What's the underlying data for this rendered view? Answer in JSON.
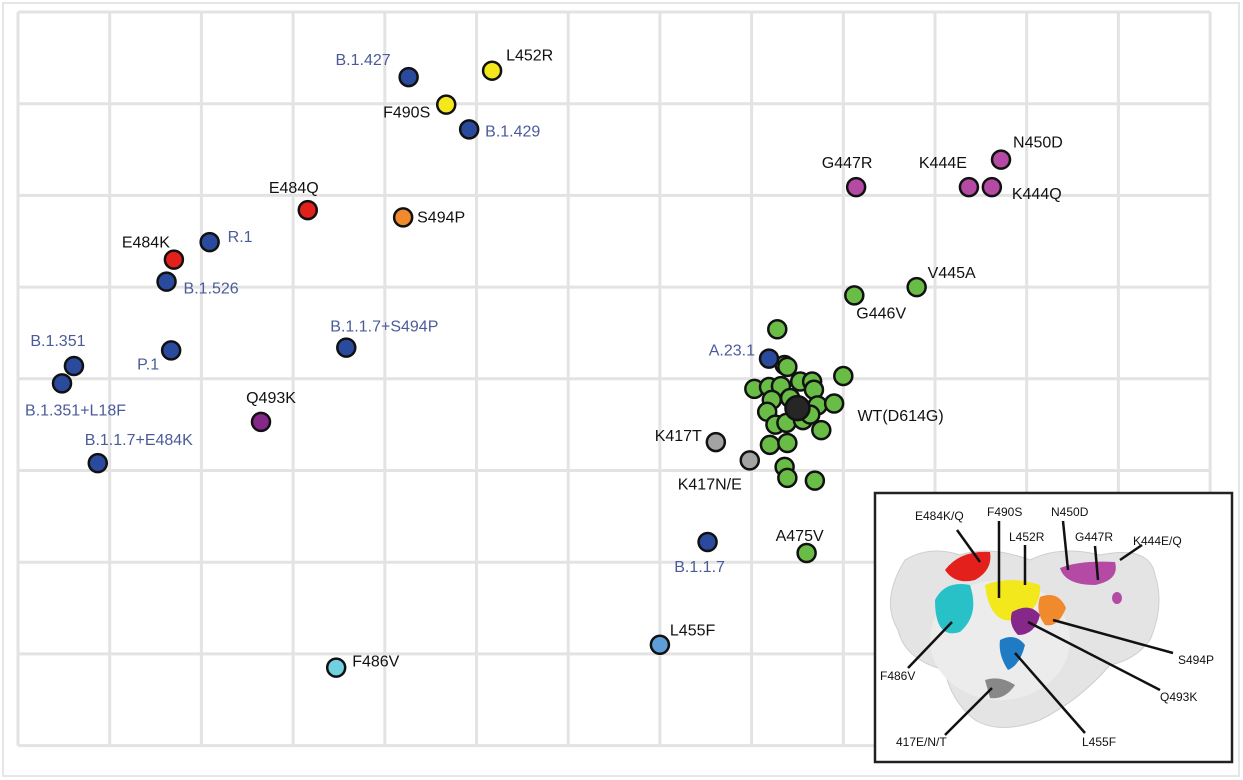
{
  "chart_data": {
    "type": "scatter",
    "title": "",
    "xlabel": "",
    "ylabel": "",
    "grid": true,
    "xlim": [
      0,
      13
    ],
    "ylim": [
      0,
      8
    ],
    "y_direction": "down",
    "colors": {
      "variant": "#2a4a9e",
      "variant_label": "#4b5b99",
      "mutant_label": "#111111",
      "yellow": "#f2e81c",
      "red": "#e3201b",
      "orange": "#f08a2c",
      "magenta": "#b54aa5",
      "purple": "#86278a",
      "green": "#69bd47",
      "gray": "#a3a3a3",
      "cyan": "#72d1e0",
      "lightblue": "#5d9ed8",
      "wt": "#262626"
    },
    "points": [
      {
        "label": "B.1.427",
        "kind": "variant",
        "color": "variant",
        "x": 4.26,
        "y": 0.71
      },
      {
        "label": "L452R",
        "kind": "mutant",
        "color": "yellow",
        "x": 5.17,
        "y": 0.64
      },
      {
        "label": "F490S",
        "kind": "mutant",
        "color": "yellow",
        "x": 4.67,
        "y": 1.01
      },
      {
        "label": "B.1.429",
        "kind": "variant",
        "color": "variant",
        "x": 4.92,
        "y": 1.28
      },
      {
        "label": "E484Q",
        "kind": "mutant",
        "color": "red",
        "x": 3.16,
        "y": 2.16
      },
      {
        "label": "S494P",
        "kind": "mutant",
        "color": "orange",
        "x": 4.2,
        "y": 2.24
      },
      {
        "label": "R.1",
        "kind": "variant",
        "color": "variant",
        "x": 2.09,
        "y": 2.51
      },
      {
        "label": "E484K",
        "kind": "mutant",
        "color": "red",
        "x": 1.7,
        "y": 2.7
      },
      {
        "label": "B.1.526",
        "kind": "variant",
        "color": "variant",
        "x": 1.62,
        "y": 2.94
      },
      {
        "label": "B.1.351",
        "kind": "variant",
        "color": "variant",
        "x": 0.61,
        "y": 3.86
      },
      {
        "label": "B.1.351+L18F",
        "kind": "variant",
        "color": "variant",
        "x": 0.48,
        "y": 4.05
      },
      {
        "label": "P.1",
        "kind": "variant",
        "color": "variant",
        "x": 1.67,
        "y": 3.69
      },
      {
        "label": "B.1.1.7+S494P",
        "kind": "variant",
        "color": "variant",
        "x": 3.58,
        "y": 3.66
      },
      {
        "label": "Q493K",
        "kind": "mutant",
        "color": "purple",
        "x": 2.65,
        "y": 4.47
      },
      {
        "label": "B.1.1.7+E484K",
        "kind": "variant",
        "color": "variant",
        "x": 0.87,
        "y": 4.92
      },
      {
        "label": "G447R",
        "kind": "mutant",
        "color": "magenta",
        "x": 9.14,
        "y": 1.91
      },
      {
        "label": "K444E",
        "kind": "mutant",
        "color": "magenta",
        "x": 10.37,
        "y": 1.91
      },
      {
        "label": "K444Q",
        "kind": "mutant",
        "color": "magenta",
        "x": 10.62,
        "y": 1.91
      },
      {
        "label": "N450D",
        "kind": "mutant",
        "color": "magenta",
        "x": 10.72,
        "y": 1.61
      },
      {
        "label": "V445A",
        "kind": "mutant",
        "color": "green",
        "x": 9.8,
        "y": 3.0
      },
      {
        "label": "G446V",
        "kind": "mutant",
        "color": "green",
        "x": 9.12,
        "y": 3.09
      },
      {
        "label": "",
        "kind": "mutant",
        "color": "green",
        "x": 8.28,
        "y": 3.46
      },
      {
        "label": "",
        "kind": "mutant",
        "color": "green",
        "x": 8.36,
        "y": 3.85
      },
      {
        "label": "",
        "kind": "mutant",
        "color": "green",
        "x": 8.39,
        "y": 3.87
      },
      {
        "label": "",
        "kind": "mutant",
        "color": "green",
        "x": 9.0,
        "y": 3.97
      },
      {
        "label": "",
        "kind": "mutant",
        "color": "green",
        "x": 8.03,
        "y": 4.11
      },
      {
        "label": "",
        "kind": "mutant",
        "color": "green",
        "x": 8.19,
        "y": 4.09
      },
      {
        "label": "",
        "kind": "mutant",
        "color": "green",
        "x": 8.32,
        "y": 4.08
      },
      {
        "label": "",
        "kind": "mutant",
        "color": "green",
        "x": 8.53,
        "y": 4.03
      },
      {
        "label": "",
        "kind": "mutant",
        "color": "green",
        "x": 8.66,
        "y": 4.03
      },
      {
        "label": "",
        "kind": "mutant",
        "color": "green",
        "x": 8.68,
        "y": 4.12
      },
      {
        "label": "",
        "kind": "mutant",
        "color": "green",
        "x": 8.22,
        "y": 4.23
      },
      {
        "label": "",
        "kind": "mutant",
        "color": "green",
        "x": 8.42,
        "y": 4.21
      },
      {
        "label": "",
        "kind": "mutant",
        "color": "green",
        "x": 8.72,
        "y": 4.29
      },
      {
        "label": "",
        "kind": "mutant",
        "color": "green",
        "x": 8.9,
        "y": 4.27
      },
      {
        "label": "",
        "kind": "mutant",
        "color": "green",
        "x": 8.17,
        "y": 4.36
      },
      {
        "label": "",
        "kind": "mutant",
        "color": "green",
        "x": 8.26,
        "y": 4.5
      },
      {
        "label": "",
        "kind": "mutant",
        "color": "green",
        "x": 8.38,
        "y": 4.48
      },
      {
        "label": "",
        "kind": "mutant",
        "color": "green",
        "x": 8.56,
        "y": 4.45
      },
      {
        "label": "",
        "kind": "mutant",
        "color": "green",
        "x": 8.64,
        "y": 4.39
      },
      {
        "label": "",
        "kind": "mutant",
        "color": "green",
        "x": 8.76,
        "y": 4.56
      },
      {
        "label": "",
        "kind": "mutant",
        "color": "green",
        "x": 8.2,
        "y": 4.72
      },
      {
        "label": "",
        "kind": "mutant",
        "color": "green",
        "x": 8.39,
        "y": 4.7
      },
      {
        "label": "",
        "kind": "mutant",
        "color": "green",
        "x": 8.36,
        "y": 4.96
      },
      {
        "label": "",
        "kind": "mutant",
        "color": "green",
        "x": 8.39,
        "y": 5.08
      },
      {
        "label": "",
        "kind": "mutant",
        "color": "green",
        "x": 8.69,
        "y": 5.11
      },
      {
        "label": "A.23.1",
        "kind": "variant",
        "color": "variant",
        "x": 8.19,
        "y": 3.78
      },
      {
        "label": "WT(D614G)",
        "kind": "mutant",
        "color": "wt",
        "x": 8.5,
        "y": 4.32
      },
      {
        "label": "K417T",
        "kind": "mutant",
        "color": "gray",
        "x": 7.61,
        "y": 4.69
      },
      {
        "label": "K417N/E",
        "kind": "mutant",
        "color": "gray",
        "x": 7.98,
        "y": 4.89
      },
      {
        "label": "B.1.1.7",
        "kind": "variant",
        "color": "variant",
        "x": 7.52,
        "y": 5.78
      },
      {
        "label": "A475V",
        "kind": "mutant",
        "color": "green",
        "x": 8.6,
        "y": 5.9
      },
      {
        "label": "L455F",
        "kind": "mutant",
        "color": "lightblue",
        "x": 7.0,
        "y": 6.9
      },
      {
        "label": "F486V",
        "kind": "mutant",
        "color": "cyan",
        "x": 3.47,
        "y": 7.15
      }
    ]
  },
  "inset": {
    "labels": [
      "E484K/Q",
      "F490S",
      "L452R",
      "N450D",
      "G447R",
      "K444E/Q",
      "F486V",
      "S494P",
      "Q493K",
      "L455F",
      "417E/N/T"
    ]
  }
}
